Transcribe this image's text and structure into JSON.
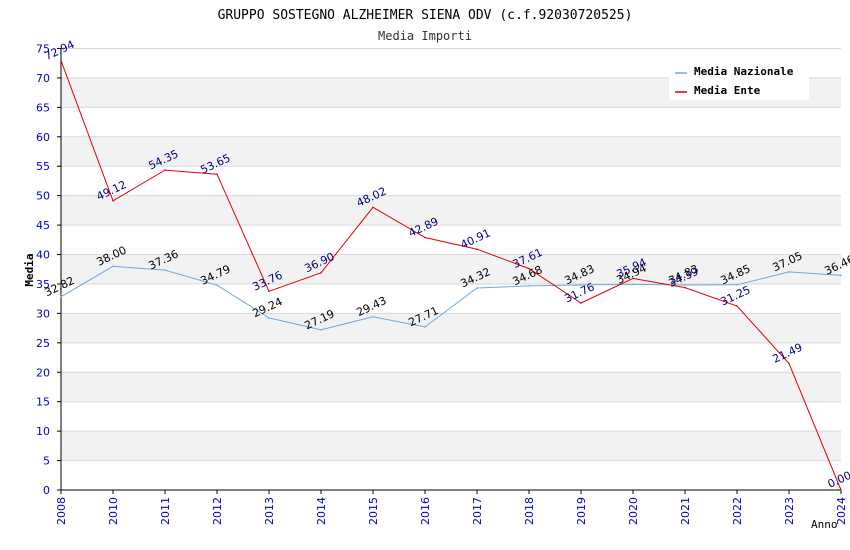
{
  "chart_data": {
    "type": "line",
    "title": "GRUPPO SOSTEGNO ALZHEIMER SIENA ODV (c.f.92030720525)",
    "subtitle": "Media Importi",
    "xlabel": "Anno",
    "ylabel": "Media",
    "ylim": [
      0,
      75
    ],
    "yticks": [
      "0",
      "5",
      "10",
      "15",
      "20",
      "25",
      "30",
      "35",
      "40",
      "45",
      "50",
      "55",
      "60",
      "65",
      "70",
      "75"
    ],
    "categories": [
      "2008",
      "2010",
      "2011",
      "2012",
      "2013",
      "2014",
      "2015",
      "2016",
      "2017",
      "2018",
      "2019",
      "2020",
      "2021",
      "2022",
      "2023",
      "2024"
    ],
    "legend_position": "top-right",
    "series": [
      {
        "name": "Media Nazionale",
        "color": "#6fa8dc",
        "label_color": "#000000",
        "values": [
          32.82,
          38.0,
          37.36,
          34.79,
          29.24,
          27.19,
          29.43,
          27.71,
          34.32,
          34.68,
          34.83,
          34.94,
          34.83,
          34.85,
          37.05,
          36.46
        ],
        "labels": [
          "32.82",
          "38.00",
          "37.36",
          "34.79",
          "29.24",
          "27.19",
          "29.43",
          "27.71",
          "34.32",
          "34.68",
          "34.83",
          "34.94",
          "34.83",
          "34.85",
          "37.05",
          "36.46"
        ]
      },
      {
        "name": "Media Ente",
        "color": "#e00000",
        "label_color": "#000080",
        "values": [
          72.94,
          49.12,
          54.35,
          53.65,
          33.76,
          36.9,
          48.02,
          42.89,
          40.91,
          37.61,
          31.76,
          35.94,
          34.39,
          31.25,
          21.49,
          0.0
        ],
        "labels": [
          "72.94",
          "49.12",
          "54.35",
          "53.65",
          "33.76",
          "36.90",
          "48.02",
          "42.89",
          "40.91",
          "37.61",
          "31.76",
          "35.94",
          "34.39",
          "31.25",
          "21.49",
          "0.00"
        ]
      }
    ],
    "colors": {
      "band": "#f2f2f2",
      "grid": "#d8d8d8",
      "axis": "#000000",
      "tick_text": "#0000cc",
      "title_text": "#000000",
      "subtitle_text": "#333333"
    }
  }
}
